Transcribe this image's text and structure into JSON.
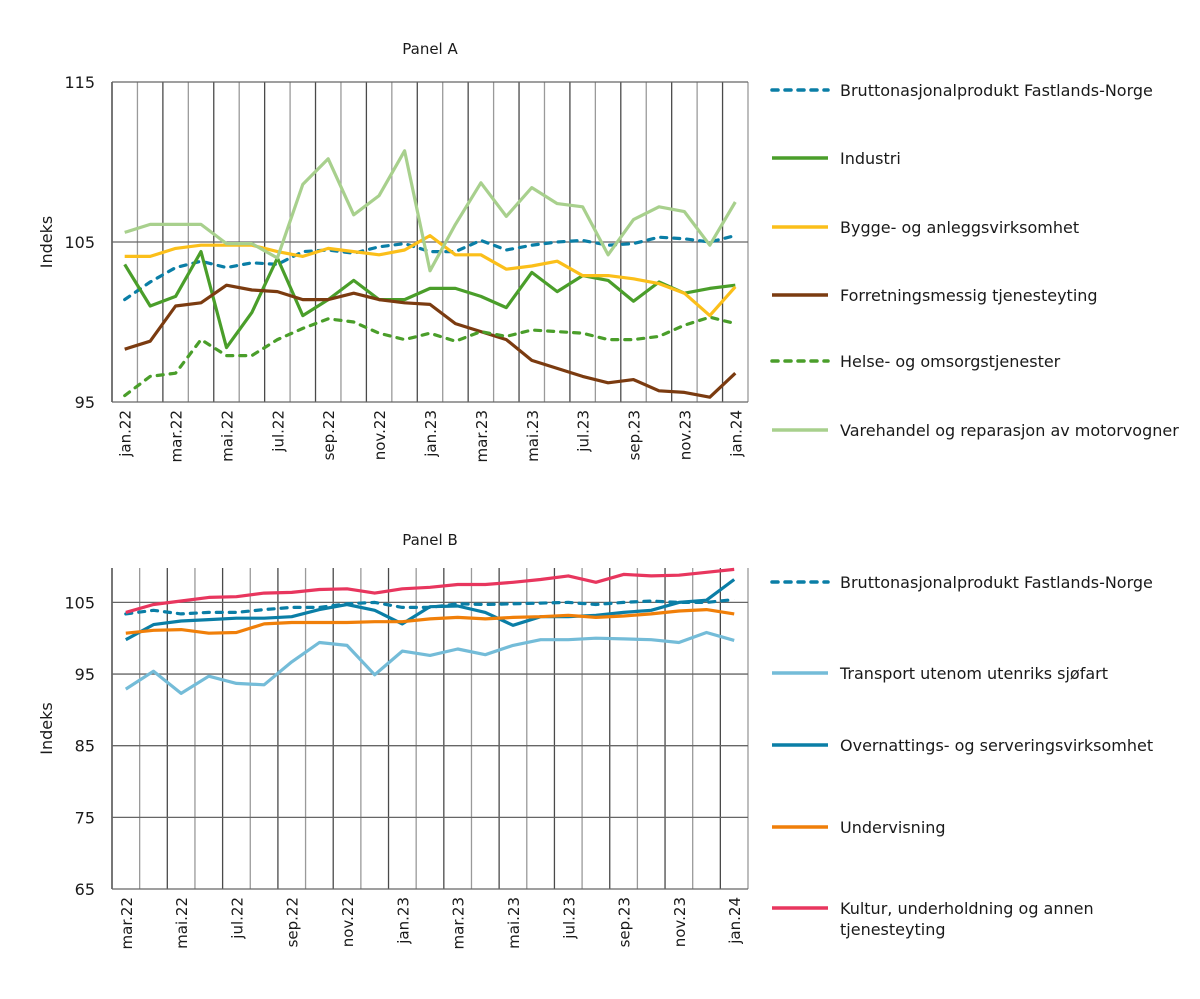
{
  "chart_data": [
    {
      "type": "line",
      "title": "Panel A",
      "ylabel": "Indeks",
      "ylim": [
        95,
        115
      ],
      "yticks": [
        95,
        105,
        115
      ],
      "grid": "vertical monthly, horizontal at 105",
      "legend": "right",
      "x": [
        "jan.22",
        "feb.22",
        "mar.22",
        "apr.22",
        "mai.22",
        "jun.22",
        "jul.22",
        "aug.22",
        "sep.22",
        "okt.22",
        "nov.22",
        "des.22",
        "jan.23",
        "feb.23",
        "mar.23",
        "apr.23",
        "mai.23",
        "jun.23",
        "jul.23",
        "aug.23",
        "sep.23",
        "okt.23",
        "nov.23",
        "des.23",
        "jan.24"
      ],
      "xticklabels": [
        "jan.22",
        "mar.22",
        "mai.22",
        "jul.22",
        "sep.22",
        "nov.22",
        "jan.23",
        "mar.23",
        "mai.23",
        "jul.23",
        "sep.23",
        "nov.23",
        "jan.24"
      ],
      "series": [
        {
          "name": "Bruttonasjonalprodukt Fastlands-Norge",
          "color": "#0a7ea6",
          "dash": true,
          "values": [
            101.4,
            102.5,
            103.4,
            103.8,
            103.4,
            103.7,
            103.6,
            104.4,
            104.5,
            104.3,
            104.7,
            104.9,
            104.4,
            104.4,
            105.1,
            104.5,
            104.8,
            105.0,
            105.1,
            104.8,
            104.9,
            105.3,
            105.2,
            105.0,
            105.4
          ]
        },
        {
          "name": "Industri",
          "color": "#4a9e2a",
          "dash": false,
          "values": [
            103.6,
            101.0,
            101.6,
            104.4,
            98.4,
            100.6,
            104.0,
            100.4,
            101.4,
            102.6,
            101.4,
            101.4,
            102.1,
            102.1,
            101.6,
            100.9,
            103.1,
            101.9,
            102.9,
            102.6,
            101.3,
            102.5,
            101.8,
            102.1,
            102.3
          ]
        },
        {
          "name": "Bygge- og anleggsvirksomhet",
          "color": "#fbbf1a",
          "dash": false,
          "values": [
            104.1,
            104.1,
            104.6,
            104.8,
            104.8,
            104.8,
            104.4,
            104.1,
            104.6,
            104.4,
            104.2,
            104.5,
            105.4,
            104.2,
            104.2,
            103.3,
            103.5,
            103.8,
            102.9,
            102.9,
            102.7,
            102.4,
            101.8,
            100.4,
            102.2
          ]
        },
        {
          "name": "Forretningsmessig tjenesteyting",
          "color": "#7b3b10",
          "dash": false,
          "values": [
            98.3,
            98.8,
            101.0,
            101.2,
            102.3,
            102.0,
            101.9,
            101.4,
            101.4,
            101.8,
            101.4,
            101.2,
            101.1,
            99.9,
            99.4,
            98.9,
            97.6,
            97.1,
            96.6,
            96.2,
            96.4,
            95.7,
            95.6,
            95.3,
            96.8
          ]
        },
        {
          "name": "Helse- og omsorgstjenester",
          "color": "#4a9e2a",
          "dash": true,
          "values": [
            95.4,
            96.6,
            96.8,
            98.9,
            97.9,
            97.9,
            98.9,
            99.6,
            100.2,
            100.0,
            99.3,
            98.9,
            99.3,
            98.8,
            99.4,
            99.1,
            99.5,
            99.4,
            99.3,
            98.9,
            98.9,
            99.1,
            99.8,
            100.3,
            99.9
          ]
        },
        {
          "name": "Varehandel og reparasjon av motorvogner",
          "color": "#a8d08d",
          "dash": false,
          "values": [
            105.6,
            106.1,
            106.1,
            106.1,
            104.9,
            104.9,
            104.0,
            108.6,
            110.2,
            106.7,
            107.9,
            110.7,
            103.2,
            106.1,
            108.7,
            106.6,
            108.4,
            107.4,
            107.2,
            104.2,
            106.4,
            107.2,
            106.9,
            104.8,
            107.5
          ]
        }
      ]
    },
    {
      "type": "line",
      "title": "Panel B",
      "ylabel": "Indeks",
      "ylim": [
        65,
        109.8
      ],
      "yticks": [
        65,
        75,
        85,
        95,
        105
      ],
      "grid": "vertical monthly, horizontal at labeled ticks",
      "legend": "right",
      "x": [
        "mar.22",
        "apr.22",
        "mai.22",
        "jun.22",
        "jul.22",
        "aug.22",
        "sep.22",
        "okt.22",
        "nov.22",
        "des.22",
        "jan.23",
        "feb.23",
        "mar.23",
        "apr.23",
        "mai.23",
        "jun.23",
        "jul.23",
        "aug.23",
        "sep.23",
        "okt.23",
        "nov.23",
        "des.23",
        "jan.24"
      ],
      "xticklabels": [
        "mar.22",
        "mai.22",
        "jul.22",
        "sep.22",
        "nov.22",
        "jan.23",
        "mar.23",
        "mai.23",
        "jul.23",
        "sep.23",
        "nov.23",
        "jan.24"
      ],
      "series": [
        {
          "name": "Bruttonasjonalprodukt Fastlands-Norge",
          "color": "#0a7ea6",
          "dash": true,
          "values": [
            103.4,
            103.9,
            103.4,
            103.6,
            103.6,
            104.0,
            104.3,
            104.3,
            104.8,
            105.0,
            104.3,
            104.3,
            104.8,
            104.7,
            104.8,
            104.9,
            105.0,
            104.7,
            105.0,
            105.2,
            105.0,
            105.0,
            105.4
          ]
        },
        {
          "name": "Transport utenom utenriks sjøfart",
          "color": "#74bcd8",
          "dash": false,
          "values": [
            92.9,
            95.4,
            92.3,
            94.7,
            93.7,
            93.5,
            96.7,
            99.4,
            99.0,
            94.9,
            98.2,
            97.6,
            98.5,
            97.7,
            99.0,
            99.8,
            99.8,
            100.0,
            99.9,
            99.8,
            99.4,
            100.8,
            99.7
          ]
        },
        {
          "name": "Overnattings- og serveringsvirksomhet",
          "color": "#0a7ea6",
          "dash": false,
          "values": [
            99.8,
            101.9,
            102.4,
            102.6,
            102.8,
            102.8,
            103.0,
            104.0,
            104.7,
            103.9,
            102.0,
            104.4,
            104.5,
            103.6,
            101.8,
            103.0,
            103.0,
            103.2,
            103.6,
            103.9,
            105.0,
            105.3,
            108.2
          ]
        },
        {
          "name": "Undervisning",
          "color": "#f07f09",
          "dash": false,
          "values": [
            100.7,
            101.1,
            101.2,
            100.7,
            100.8,
            102.0,
            102.2,
            102.2,
            102.2,
            102.3,
            102.3,
            102.7,
            102.9,
            102.7,
            102.9,
            103.0,
            103.2,
            102.9,
            103.1,
            103.4,
            103.8,
            104.0,
            103.4
          ]
        },
        {
          "name": "Kultur, underholdning og annen tjenesteyting",
          "color": "#e8365e",
          "dash": false,
          "values": [
            103.6,
            104.7,
            105.2,
            105.7,
            105.8,
            106.3,
            106.4,
            106.8,
            106.9,
            106.3,
            106.9,
            107.1,
            107.5,
            107.5,
            107.8,
            108.2,
            108.7,
            107.8,
            108.9,
            108.7,
            108.8,
            109.2,
            109.6
          ]
        }
      ]
    }
  ]
}
